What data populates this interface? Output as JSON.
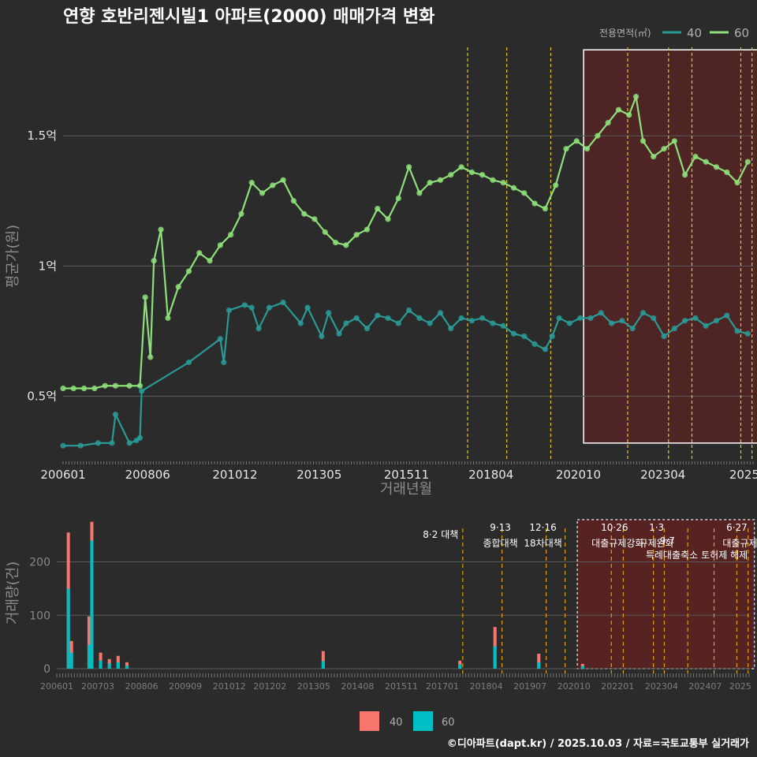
{
  "title": "연향 호반리젠시빌1 아파트(2000) 매매가격 변화",
  "credit": "©디아파트(dapt.kr) / 2025.10.03 / 자료=국토교통부 실거래가",
  "colors": {
    "background": "#2b2b2b",
    "series40_price": "#2a9a96",
    "series60_price": "#8ee07a",
    "series40_volume": "#f8766d",
    "series60_volume": "#00bfc4",
    "policy_line": "#e6c619",
    "highlight_fill": "#6b1f1f",
    "grid": "#5a5a5a"
  },
  "chart_data": [
    {
      "type": "line",
      "name": "price",
      "xlabel": "거래년월",
      "ylabel": "평균가(원)",
      "ylim": [
        0.25,
        1.87
      ],
      "xlim": [
        2006.0,
        2025.75
      ],
      "ytick_labels": [
        "0.5억",
        "1억",
        "1.5억"
      ],
      "ytick_values": [
        0.5,
        1.0,
        1.5
      ],
      "xtick_labels": [
        "200601",
        "200806",
        "201012",
        "201305",
        "201511",
        "201804",
        "202010",
        "202304",
        "2025"
      ],
      "xtick_values": [
        2006.0,
        2008.42,
        2010.92,
        2013.33,
        2015.83,
        2018.25,
        2020.75,
        2023.17,
        2025.5
      ],
      "legend_title": "전용면적(㎡)",
      "legend_position": "top-right",
      "highlight": {
        "x_from": 2020.9,
        "x_to": 2025.9,
        "y_from": 0.32,
        "y_to": 1.83
      },
      "policy_lines": [
        2017.58,
        2018.7,
        2019.96,
        2022.16,
        2023.33,
        2024.0,
        2025.4,
        2025.72
      ],
      "series": [
        {
          "name": "40",
          "x": [
            2006.0,
            2006.5,
            2007.0,
            2007.4,
            2007.5,
            2007.9,
            2008.1,
            2008.2,
            2008.25,
            2009.6,
            2010.5,
            2010.6,
            2010.75,
            2011.2,
            2011.4,
            2011.6,
            2011.9,
            2012.3,
            2012.8,
            2013.0,
            2013.4,
            2013.6,
            2013.9,
            2014.1,
            2014.4,
            2014.7,
            2015.0,
            2015.3,
            2015.6,
            2015.9,
            2016.2,
            2016.5,
            2016.8,
            2017.1,
            2017.4,
            2017.7,
            2018.0,
            2018.3,
            2018.6,
            2018.9,
            2019.2,
            2019.5,
            2019.8,
            2020.0,
            2020.2,
            2020.5,
            2020.8,
            2021.1,
            2021.4,
            2021.7,
            2022.0,
            2022.3,
            2022.6,
            2022.9,
            2023.2,
            2023.5,
            2023.8,
            2024.1,
            2024.4,
            2024.7,
            2025.0,
            2025.3,
            2025.6
          ],
          "values": [
            0.31,
            0.31,
            0.32,
            0.32,
            0.43,
            0.32,
            0.33,
            0.34,
            0.52,
            0.63,
            0.72,
            0.63,
            0.83,
            0.85,
            0.84,
            0.76,
            0.84,
            0.86,
            0.78,
            0.84,
            0.73,
            0.82,
            0.74,
            0.78,
            0.8,
            0.76,
            0.81,
            0.8,
            0.78,
            0.83,
            0.8,
            0.78,
            0.82,
            0.76,
            0.8,
            0.79,
            0.8,
            0.78,
            0.77,
            0.74,
            0.73,
            0.7,
            0.68,
            0.73,
            0.8,
            0.78,
            0.8,
            0.8,
            0.82,
            0.78,
            0.79,
            0.76,
            0.82,
            0.8,
            0.73,
            0.76,
            0.79,
            0.8,
            0.77,
            0.79,
            0.81,
            0.75,
            0.74
          ]
        },
        {
          "name": "60",
          "x": [
            2006.0,
            2006.3,
            2006.6,
            2006.9,
            2007.2,
            2007.5,
            2007.9,
            2008.2,
            2008.35,
            2008.5,
            2008.6,
            2008.8,
            2009.0,
            2009.3,
            2009.6,
            2009.9,
            2010.2,
            2010.5,
            2010.8,
            2011.1,
            2011.4,
            2011.7,
            2012.0,
            2012.3,
            2012.6,
            2012.9,
            2013.2,
            2013.5,
            2013.8,
            2014.1,
            2014.4,
            2014.7,
            2015.0,
            2015.3,
            2015.6,
            2015.9,
            2016.2,
            2016.5,
            2016.8,
            2017.1,
            2017.4,
            2017.7,
            2018.0,
            2018.3,
            2018.6,
            2018.9,
            2019.2,
            2019.5,
            2019.8,
            2020.1,
            2020.4,
            2020.7,
            2021.0,
            2021.3,
            2021.6,
            2021.9,
            2022.2,
            2022.4,
            2022.6,
            2022.9,
            2023.2,
            2023.5,
            2023.8,
            2024.1,
            2024.4,
            2024.7,
            2025.0,
            2025.3,
            2025.6
          ],
          "values": [
            0.53,
            0.53,
            0.53,
            0.53,
            0.54,
            0.54,
            0.54,
            0.54,
            0.88,
            0.65,
            1.02,
            1.14,
            0.8,
            0.92,
            0.98,
            1.05,
            1.02,
            1.08,
            1.12,
            1.2,
            1.32,
            1.28,
            1.31,
            1.33,
            1.25,
            1.2,
            1.18,
            1.13,
            1.09,
            1.08,
            1.12,
            1.14,
            1.22,
            1.18,
            1.26,
            1.38,
            1.28,
            1.32,
            1.33,
            1.35,
            1.38,
            1.36,
            1.35,
            1.33,
            1.32,
            1.3,
            1.28,
            1.24,
            1.22,
            1.31,
            1.45,
            1.48,
            1.45,
            1.5,
            1.55,
            1.6,
            1.58,
            1.65,
            1.48,
            1.42,
            1.45,
            1.48,
            1.35,
            1.42,
            1.4,
            1.38,
            1.36,
            1.32,
            1.4
          ]
        }
      ]
    },
    {
      "type": "bar",
      "name": "volume",
      "ylabel": "거래량(건)",
      "ylim": [
        0,
        285
      ],
      "ytick_labels": [
        "0",
        "100",
        "200"
      ],
      "ytick_values": [
        0,
        100,
        200
      ],
      "xtick_labels": [
        "200601",
        "200703",
        "200806",
        "200909",
        "201012",
        "201202",
        "201305",
        "201408",
        "201511",
        "201701",
        "201804",
        "201907",
        "202010",
        "202201",
        "202304",
        "202407",
        "2025"
      ],
      "xtick_values": [
        2006.0,
        2007.17,
        2008.42,
        2009.67,
        2010.92,
        2012.08,
        2013.33,
        2014.58,
        2015.83,
        2017.0,
        2018.25,
        2019.5,
        2020.75,
        2022.0,
        2023.25,
        2024.5,
        2025.5
      ],
      "legend_position": "bottom",
      "highlight": {
        "x_from": 2020.85,
        "x_to": 2025.9,
        "y_from": 0,
        "y_to": 285
      },
      "policy_lines": [
        2017.58,
        2018.7,
        2019.96,
        2020.5,
        2021.82,
        2022.16,
        2023.02,
        2023.33,
        2024.0,
        2024.75,
        2025.4,
        2025.72
      ],
      "policy_labels": [
        "8·2 대책",
        "9·13",
        "종합대책",
        "12·16",
        "18차대책",
        "10·26",
        "대출규제강화",
        "1·3",
        "규제완화",
        "9·7",
        "특례대출축소",
        "토허제 해제",
        "6·27",
        "대출규제"
      ],
      "series": [
        {
          "name": "40",
          "x": [
            2006.33,
            2006.42,
            2006.92,
            2007.0,
            2007.25,
            2007.5,
            2007.75,
            2008.0,
            2013.6,
            2017.5,
            2018.5,
            2019.75,
            2021.0
          ],
          "values": [
            255,
            52,
            98,
            275,
            30,
            18,
            24,
            12,
            33,
            15,
            78,
            28,
            9
          ]
        },
        {
          "name": "60",
          "x": [
            2006.33,
            2006.42,
            2006.92,
            2007.0,
            2007.25,
            2007.5,
            2007.75,
            2008.0,
            2013.6,
            2017.5,
            2018.5,
            2019.75,
            2021.0
          ],
          "values": [
            150,
            30,
            45,
            240,
            15,
            10,
            12,
            6,
            14,
            8,
            42,
            12,
            5
          ]
        }
      ]
    }
  ],
  "legend": {
    "price_title": "전용면적(㎡)",
    "items": [
      "40",
      "60"
    ]
  },
  "top_chart": {
    "title_x": "거래년월",
    "title_y": "평균가(원)"
  },
  "bottom_chart": {
    "title_y": "거래량(건)"
  }
}
